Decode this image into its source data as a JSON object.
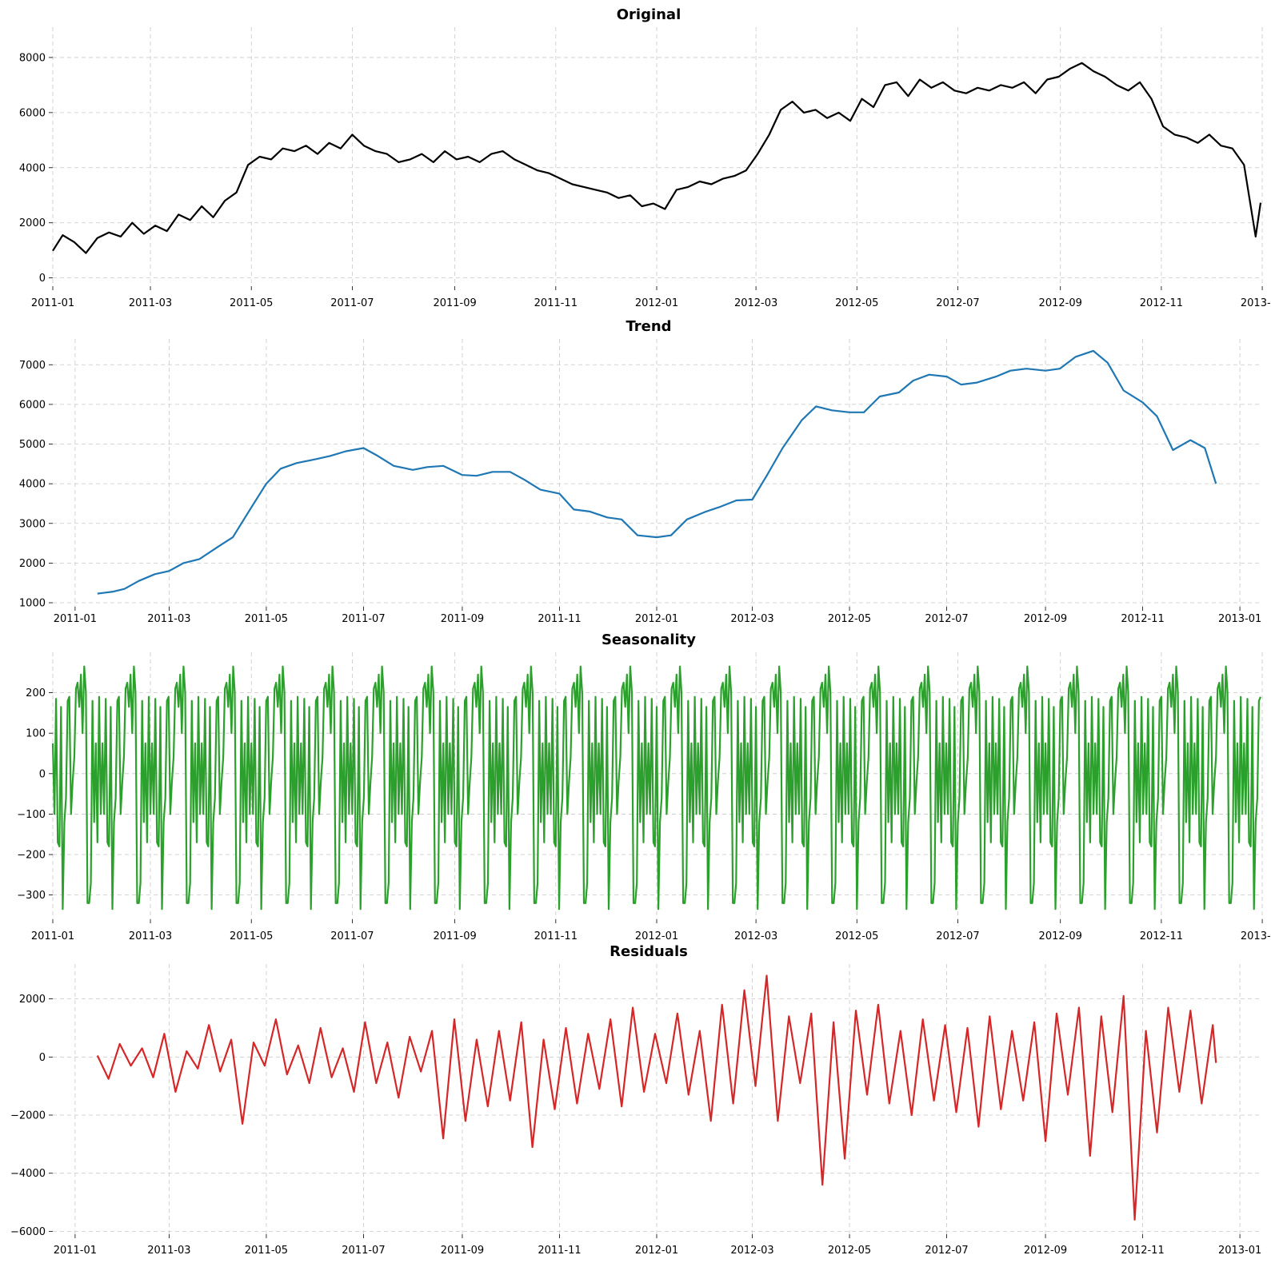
{
  "chart_data": [
    {
      "type": "line",
      "title": "Original",
      "color": "#000000",
      "grid": true,
      "x_range": [
        "2011-01-01",
        "2012-12-31"
      ],
      "ylim": [
        -300,
        9100
      ],
      "y_ticks": [
        0,
        2000,
        4000,
        6000,
        8000
      ],
      "x_ticks": [
        "2011-01",
        "2011-03",
        "2011-05",
        "2011-07",
        "2011-09",
        "2011-11",
        "2012-01",
        "2012-03",
        "2012-05",
        "2012-07",
        "2012-09",
        "2012-11",
        "2013-01"
      ],
      "x": [
        "2011-01-01",
        "2011-01-07",
        "2011-01-14",
        "2011-01-21",
        "2011-01-28",
        "2011-02-04",
        "2011-02-11",
        "2011-02-18",
        "2011-02-25",
        "2011-03-04",
        "2011-03-11",
        "2011-03-18",
        "2011-03-25",
        "2011-04-01",
        "2011-04-08",
        "2011-04-15",
        "2011-04-22",
        "2011-04-29",
        "2011-05-06",
        "2011-05-13",
        "2011-05-20",
        "2011-05-27",
        "2011-06-03",
        "2011-06-10",
        "2011-06-17",
        "2011-06-24",
        "2011-07-01",
        "2011-07-08",
        "2011-07-15",
        "2011-07-22",
        "2011-07-29",
        "2011-08-05",
        "2011-08-12",
        "2011-08-19",
        "2011-08-26",
        "2011-09-02",
        "2011-09-09",
        "2011-09-16",
        "2011-09-23",
        "2011-09-30",
        "2011-10-07",
        "2011-10-14",
        "2011-10-21",
        "2011-10-28",
        "2011-11-04",
        "2011-11-11",
        "2011-11-18",
        "2011-11-25",
        "2011-12-02",
        "2011-12-09",
        "2011-12-16",
        "2011-12-23",
        "2011-12-30",
        "2012-01-06",
        "2012-01-13",
        "2012-01-20",
        "2012-01-27",
        "2012-02-03",
        "2012-02-10",
        "2012-02-17",
        "2012-02-24",
        "2012-03-02",
        "2012-03-09",
        "2012-03-16",
        "2012-03-23",
        "2012-03-30",
        "2012-04-06",
        "2012-04-13",
        "2012-04-20",
        "2012-04-27",
        "2012-05-04",
        "2012-05-11",
        "2012-05-18",
        "2012-05-25",
        "2012-06-01",
        "2012-06-08",
        "2012-06-15",
        "2012-06-22",
        "2012-06-29",
        "2012-07-06",
        "2012-07-13",
        "2012-07-20",
        "2012-07-27",
        "2012-08-03",
        "2012-08-10",
        "2012-08-17",
        "2012-08-24",
        "2012-08-31",
        "2012-09-07",
        "2012-09-14",
        "2012-09-21",
        "2012-09-28",
        "2012-10-05",
        "2012-10-12",
        "2012-10-19",
        "2012-10-26",
        "2012-11-02",
        "2012-11-09",
        "2012-11-16",
        "2012-11-23",
        "2012-11-30",
        "2012-12-07",
        "2012-12-14",
        "2012-12-21",
        "2012-12-28",
        "2012-12-31"
      ],
      "values": [
        985,
        1550,
        1300,
        900,
        1450,
        1650,
        1500,
        2000,
        1600,
        1900,
        1700,
        2300,
        2100,
        2600,
        2200,
        2800,
        3100,
        4100,
        4400,
        4300,
        4700,
        4600,
        4800,
        4500,
        4900,
        4700,
        5200,
        4800,
        4600,
        4500,
        4200,
        4300,
        4500,
        4200,
        4600,
        4300,
        4400,
        4200,
        4500,
        4600,
        4300,
        4100,
        3900,
        3800,
        3600,
        3400,
        3300,
        3200,
        3100,
        2900,
        3000,
        2600,
        2700,
        2500,
        3200,
        3300,
        3500,
        3400,
        3600,
        3700,
        3900,
        4500,
        5200,
        6100,
        6400,
        6000,
        6100,
        5800,
        6000,
        5700,
        6500,
        6200,
        7000,
        7100,
        6600,
        7200,
        6900,
        7100,
        6800,
        6700,
        6900,
        6800,
        7000,
        6900,
        7100,
        6700,
        7200,
        7300,
        7600,
        7800,
        7500,
        7300,
        7000,
        6800,
        7100,
        6500,
        5500,
        5200,
        5100,
        4900,
        5200,
        4800,
        4700,
        4100,
        1500,
        2729
      ]
    },
    {
      "type": "line",
      "title": "Trend",
      "color": "#1f77b4",
      "grid": true,
      "x_range": [
        "2010-12-18",
        "2013-01-14"
      ],
      "ylim": [
        900,
        7650
      ],
      "y_ticks": [
        1000,
        2000,
        3000,
        4000,
        5000,
        6000,
        7000
      ],
      "x_ticks": [
        "2011-01",
        "2011-03",
        "2011-05",
        "2011-07",
        "2011-09",
        "2011-11",
        "2012-01",
        "2012-03",
        "2012-05",
        "2012-07",
        "2012-09",
        "2012-11",
        "2013-01"
      ],
      "x": [
        "2011-01-15",
        "2011-01-25",
        "2011-02-01",
        "2011-02-10",
        "2011-02-20",
        "2011-03-01",
        "2011-03-10",
        "2011-03-20",
        "2011-04-01",
        "2011-04-10",
        "2011-04-20",
        "2011-05-01",
        "2011-05-10",
        "2011-05-20",
        "2011-06-01",
        "2011-06-10",
        "2011-06-20",
        "2011-07-01",
        "2011-07-10",
        "2011-07-20",
        "2011-08-01",
        "2011-08-10",
        "2011-08-20",
        "2011-09-01",
        "2011-09-10",
        "2011-09-20",
        "2011-10-01",
        "2011-10-10",
        "2011-10-20",
        "2011-11-01",
        "2011-11-10",
        "2011-11-20",
        "2011-12-01",
        "2011-12-10",
        "2011-12-20",
        "2012-01-01",
        "2012-01-10",
        "2012-01-20",
        "2012-02-01",
        "2012-02-10",
        "2012-02-20",
        "2012-03-01",
        "2012-03-10",
        "2012-03-20",
        "2012-04-01",
        "2012-04-10",
        "2012-04-20",
        "2012-05-01",
        "2012-05-10",
        "2012-05-20",
        "2012-06-01",
        "2012-06-10",
        "2012-06-20",
        "2012-07-01",
        "2012-07-10",
        "2012-07-20",
        "2012-08-01",
        "2012-08-10",
        "2012-08-20",
        "2012-09-01",
        "2012-09-10",
        "2012-09-20",
        "2012-10-01",
        "2012-10-10",
        "2012-10-20",
        "2012-11-01",
        "2012-11-10",
        "2012-11-20",
        "2012-12-01",
        "2012-12-10",
        "2012-12-17"
      ],
      "values": [
        1230,
        1280,
        1350,
        1550,
        1720,
        1800,
        2000,
        2100,
        2420,
        2650,
        3300,
        4000,
        4380,
        4520,
        4620,
        4700,
        4820,
        4900,
        4700,
        4450,
        4350,
        4420,
        4450,
        4220,
        4200,
        4300,
        4300,
        4100,
        3850,
        3750,
        3350,
        3300,
        3150,
        3100,
        2700,
        2650,
        2700,
        3100,
        3300,
        3420,
        3580,
        3600,
        4200,
        4900,
        5600,
        5950,
        5850,
        5800,
        5800,
        6200,
        6300,
        6600,
        6750,
        6700,
        6500,
        6550,
        6700,
        6850,
        6900,
        6850,
        6900,
        7200,
        7350,
        7050,
        6350,
        6050,
        5700,
        4850,
        5100,
        4900,
        4000
      ]
    },
    {
      "type": "line",
      "title": "Seasonality",
      "color": "#2ca02c",
      "grid": true,
      "period_days": 30,
      "x_range": [
        "2011-01-01",
        "2012-12-31"
      ],
      "ylim": [
        -360,
        300
      ],
      "y_ticks": [
        -300,
        -200,
        -100,
        0,
        100,
        200
      ],
      "x_ticks": [
        "2011-01",
        "2011-03",
        "2011-05",
        "2011-07",
        "2011-09",
        "2011-11",
        "2012-01",
        "2012-03",
        "2012-05",
        "2012-07",
        "2012-09",
        "2012-11",
        "2013-01"
      ],
      "pattern": [
        75,
        -100,
        185,
        -170,
        -180,
        165,
        -335,
        -120,
        -60,
        180,
        190,
        -100,
        -20,
        40,
        210,
        225,
        165,
        245,
        100,
        265,
        200,
        -320,
        -320,
        -270,
        180,
        -120,
        75,
        -170,
        190,
        -100
      ]
    },
    {
      "type": "line",
      "title": "Residuals",
      "color": "#d62728",
      "grid": true,
      "x_range": [
        "2010-12-18",
        "2013-01-14"
      ],
      "ylim": [
        -6100,
        3200
      ],
      "y_ticks": [
        -6000,
        -4000,
        -2000,
        0,
        2000
      ],
      "x_ticks": [
        "2011-01",
        "2011-03",
        "2011-05",
        "2011-07",
        "2011-09",
        "2011-11",
        "2012-01",
        "2012-03",
        "2012-05",
        "2012-07",
        "2012-09",
        "2012-11",
        "2013-01"
      ],
      "x": [
        "2011-01-15",
        "2011-01-22",
        "2011-01-29",
        "2011-02-05",
        "2011-02-12",
        "2011-02-19",
        "2011-02-26",
        "2011-03-05",
        "2011-03-12",
        "2011-03-19",
        "2011-03-26",
        "2011-04-02",
        "2011-04-09",
        "2011-04-16",
        "2011-04-23",
        "2011-04-30",
        "2011-05-07",
        "2011-05-14",
        "2011-05-21",
        "2011-05-28",
        "2011-06-04",
        "2011-06-11",
        "2011-06-18",
        "2011-06-25",
        "2011-07-02",
        "2011-07-09",
        "2011-07-16",
        "2011-07-23",
        "2011-07-30",
        "2011-08-06",
        "2011-08-13",
        "2011-08-20",
        "2011-08-27",
        "2011-09-03",
        "2011-09-10",
        "2011-09-17",
        "2011-09-24",
        "2011-10-01",
        "2011-10-08",
        "2011-10-15",
        "2011-10-22",
        "2011-10-29",
        "2011-11-05",
        "2011-11-12",
        "2011-11-19",
        "2011-11-26",
        "2011-12-03",
        "2011-12-10",
        "2011-12-17",
        "2011-12-24",
        "2011-12-31",
        "2012-01-07",
        "2012-01-14",
        "2012-01-21",
        "2012-01-28",
        "2012-02-04",
        "2012-02-11",
        "2012-02-18",
        "2012-02-25",
        "2012-03-03",
        "2012-03-10",
        "2012-03-17",
        "2012-03-24",
        "2012-03-31",
        "2012-04-07",
        "2012-04-14",
        "2012-04-21",
        "2012-04-28",
        "2012-05-05",
        "2012-05-12",
        "2012-05-19",
        "2012-05-26",
        "2012-06-02",
        "2012-06-09",
        "2012-06-16",
        "2012-06-23",
        "2012-06-30",
        "2012-07-07",
        "2012-07-14",
        "2012-07-21",
        "2012-07-28",
        "2012-08-04",
        "2012-08-11",
        "2012-08-18",
        "2012-08-25",
        "2012-09-01",
        "2012-09-08",
        "2012-09-15",
        "2012-09-22",
        "2012-09-29",
        "2012-10-06",
        "2012-10-13",
        "2012-10-20",
        "2012-10-27",
        "2012-11-03",
        "2012-11-10",
        "2012-11-17",
        "2012-11-24",
        "2012-12-01",
        "2012-12-08",
        "2012-12-15",
        "2012-12-17"
      ],
      "values": [
        50,
        -750,
        450,
        -300,
        300,
        -700,
        800,
        -1200,
        200,
        -400,
        1100,
        -500,
        600,
        -2300,
        500,
        -300,
        1300,
        -600,
        400,
        -900,
        1000,
        -700,
        300,
        -1200,
        1200,
        -900,
        500,
        -1400,
        700,
        -500,
        900,
        -2800,
        1300,
        -2200,
        600,
        -1700,
        900,
        -1500,
        1200,
        -3100,
        600,
        -1800,
        1000,
        -1600,
        800,
        -1100,
        1300,
        -1700,
        1700,
        -1200,
        800,
        -900,
        1500,
        -1300,
        900,
        -2200,
        1800,
        -1600,
        2300,
        -1000,
        2800,
        -2200,
        1400,
        -900,
        1500,
        -4400,
        1200,
        -3500,
        1600,
        -1300,
        1800,
        -1600,
        900,
        -2000,
        1300,
        -1500,
        1100,
        -1900,
        1000,
        -2400,
        1400,
        -1800,
        900,
        -1500,
        1200,
        -2900,
        1500,
        -1300,
        1700,
        -3400,
        1400,
        -1900,
        2100,
        -5600,
        900,
        -2600,
        1700,
        -1200,
        1600,
        -1600,
        1100,
        -200
      ]
    }
  ]
}
